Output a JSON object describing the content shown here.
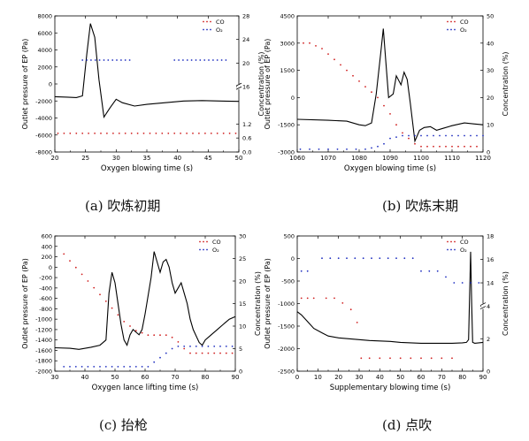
{
  "chart_data": [
    {
      "type": "line",
      "caption": "(a) 吹炼初期",
      "xlabel": "Oxygen blowing time (s)",
      "ylabel": "Outlet pressure of EP (Pa)",
      "y2label": "Concentration (%)",
      "xlim": [
        20,
        50
      ],
      "xticks": [
        "20",
        "25",
        "30",
        "35",
        "40",
        "45",
        "50"
      ],
      "ylim": [
        -8000,
        8000
      ],
      "yticks": [
        "-8000",
        "-6000",
        "-4000",
        "-2000",
        "0",
        "2000",
        "4000",
        "6000",
        "8000"
      ],
      "y2_lower": {
        "range": [
          0.0,
          2.8
        ],
        "ticks": [
          "0.0",
          "0.6",
          "1.2"
        ]
      },
      "y2_upper": {
        "range": [
          16,
          28
        ],
        "ticks": [
          "16",
          "20",
          "24",
          "28"
        ]
      },
      "legend": [
        {
          "name": "CO",
          "marker": "dot",
          "color": "#d02020"
        },
        {
          "name": "O₂",
          "marker": "dot",
          "color": "#2030c0"
        }
      ],
      "series": [
        {
          "name": "pressure",
          "axis": "left",
          "color": "#000000",
          "x": [
            20,
            22,
            23.5,
            24.5,
            25.2,
            25.8,
            26.5,
            27.2,
            28,
            29,
            30,
            31,
            33,
            35,
            38,
            41,
            44,
            47,
            50
          ],
          "y": [
            -1500,
            -1550,
            -1600,
            -1400,
            3500,
            7100,
            5500,
            500,
            -3900,
            -2800,
            -1800,
            -2200,
            -2600,
            -2400,
            -2200,
            -2000,
            -1950,
            -2000,
            -2050
          ]
        },
        {
          "name": "CO",
          "axis": "right-lower",
          "color": "#d02020",
          "x": [
            20.5,
            21.5,
            22.5,
            23.5,
            24.5,
            25.5,
            26.5,
            27.5,
            28.5,
            29.5,
            30.5,
            31.5,
            32.5,
            33.5,
            34.5,
            35.5,
            36.5,
            37.5,
            38.5,
            39.5,
            40.5,
            41.5,
            42.5,
            43.5,
            44.5,
            45.5,
            46.5,
            47.5,
            48.5,
            49.5
          ],
          "y": [
            0.8,
            0.8,
            0.8,
            0.8,
            0.8,
            0.8,
            0.8,
            0.8,
            0.8,
            0.8,
            0.8,
            0.8,
            0.8,
            0.8,
            0.8,
            0.8,
            0.8,
            0.8,
            0.8,
            0.8,
            0.8,
            0.8,
            0.8,
            0.8,
            0.8,
            0.8,
            0.8,
            0.8,
            0.8,
            0.8
          ]
        },
        {
          "name": "O₂",
          "axis": "right-upper",
          "color": "#2030c0",
          "x": [
            24.5,
            25.2,
            25.9,
            26.6,
            27.3,
            28.0,
            28.7,
            29.4,
            30.1,
            30.8,
            31.5,
            32.2,
            39.5,
            40.2,
            40.9,
            41.6,
            42.3,
            43.0,
            43.7,
            44.4,
            45.1,
            45.8,
            46.5,
            47.2,
            47.9
          ],
          "y": [
            20.5,
            20.5,
            20.5,
            20.5,
            20.5,
            20.5,
            20.5,
            20.5,
            20.5,
            20.5,
            20.5,
            20.5,
            20.5,
            20.5,
            20.5,
            20.5,
            20.5,
            20.5,
            20.5,
            20.5,
            20.5,
            20.5,
            20.5,
            20.5,
            20.5
          ]
        }
      ]
    },
    {
      "type": "line",
      "caption": "(b) 吹炼末期",
      "xlabel": "Oxygen blowing time (s)",
      "ylabel": "Outlet pressure of EP (Pa)",
      "y2label": "Concentration (%)",
      "xlim": [
        1060,
        1120
      ],
      "xticks": [
        "1060",
        "1070",
        "1080",
        "1090",
        "1100",
        "1110",
        "1120"
      ],
      "ylim": [
        -3000,
        4500
      ],
      "yticks": [
        "-3000",
        "-1500",
        "0",
        "1500",
        "3000",
        "4500"
      ],
      "y2": {
        "range": [
          0,
          50
        ],
        "ticks": [
          "0",
          "10",
          "20",
          "30",
          "40",
          "50"
        ]
      },
      "legend": [
        {
          "name": "CO",
          "marker": "dot",
          "color": "#d02020"
        },
        {
          "name": "O₂",
          "marker": "dot",
          "color": "#2030c0"
        }
      ],
      "series": [
        {
          "name": "pressure",
          "axis": "left",
          "color": "#000000",
          "x": [
            1060,
            1070,
            1076,
            1080,
            1082,
            1084,
            1085.5,
            1087,
            1087.8,
            1088.5,
            1089.5,
            1091,
            1092,
            1093.5,
            1094.5,
            1095.5,
            1096.5,
            1098,
            1099.5,
            1101,
            1103,
            1105,
            1107,
            1110,
            1114,
            1117,
            1120
          ],
          "y": [
            -1200,
            -1250,
            -1300,
            -1500,
            -1550,
            -1400,
            200,
            2500,
            3800,
            2200,
            0,
            200,
            1200,
            700,
            1400,
            1000,
            -300,
            -2400,
            -1800,
            -1650,
            -1600,
            -1800,
            -1700,
            -1550,
            -1400,
            -1450,
            -1500
          ]
        },
        {
          "name": "CO",
          "axis": "right",
          "color": "#d02020",
          "x": [
            1062,
            1064,
            1066,
            1068,
            1070,
            1072,
            1074,
            1076,
            1078,
            1080,
            1082,
            1084,
            1086,
            1088,
            1090,
            1092,
            1094,
            1096,
            1098,
            1100,
            1102,
            1104,
            1106,
            1108,
            1110,
            1112,
            1114,
            1116,
            1118
          ],
          "y": [
            40,
            40,
            39,
            38,
            36,
            34,
            32,
            30,
            28,
            26,
            24,
            22,
            20,
            17,
            14,
            10,
            7,
            5,
            3,
            2,
            2,
            2,
            2,
            2,
            2,
            2,
            2,
            2,
            2
          ]
        },
        {
          "name": "O₂",
          "axis": "right",
          "color": "#2030c0",
          "x": [
            1061,
            1064,
            1067,
            1070,
            1073,
            1076,
            1079,
            1082,
            1084,
            1086,
            1088,
            1090,
            1092,
            1094,
            1096,
            1098,
            1100,
            1102,
            1104,
            1106,
            1108,
            1110,
            1112,
            1114,
            1116,
            1118,
            1120
          ],
          "y": [
            1,
            1,
            1,
            1,
            1,
            1,
            1,
            1,
            1.5,
            2,
            3,
            5,
            5.5,
            6,
            6,
            6,
            6,
            6,
            6,
            6,
            6,
            6,
            6,
            6,
            6,
            6,
            6
          ]
        }
      ]
    },
    {
      "type": "line",
      "caption": "(c) 抬枪",
      "xlabel": "Oxygen lance lifting time (s)",
      "ylabel": "Outlet pressure of EP (Pa)",
      "y2label": "Concentration (%)",
      "xlim": [
        30,
        90
      ],
      "xticks": [
        "30",
        "40",
        "50",
        "60",
        "70",
        "80",
        "90"
      ],
      "ylim": [
        -2000,
        600
      ],
      "yticks": [
        "-2000",
        "-1800",
        "-1600",
        "-1400",
        "-1200",
        "-1000",
        "-800",
        "-600",
        "-400",
        "-200",
        "0",
        "200",
        "400",
        "600"
      ],
      "y2": {
        "range": [
          0,
          30
        ],
        "ticks": [
          "0",
          "5",
          "10",
          "15",
          "20",
          "25",
          "30"
        ]
      },
      "legend": [
        {
          "name": "CO",
          "marker": "dot",
          "color": "#d02020"
        },
        {
          "name": "O₂",
          "marker": "dot",
          "color": "#2030c0"
        }
      ],
      "series": [
        {
          "name": "pressure",
          "axis": "left",
          "color": "#000000",
          "x": [
            30,
            35,
            38,
            42,
            45,
            47,
            48,
            49,
            50,
            51,
            52,
            53,
            54,
            55,
            56,
            57,
            58,
            59,
            60,
            62,
            63,
            64,
            65,
            66,
            67,
            68,
            69,
            70,
            71,
            72,
            73,
            74,
            75,
            76,
            78,
            79,
            80,
            82,
            84,
            86,
            88,
            90
          ],
          "y": [
            -1550,
            -1560,
            -1580,
            -1540,
            -1500,
            -1400,
            -500,
            -100,
            -300,
            -700,
            -1100,
            -1400,
            -1500,
            -1300,
            -1200,
            -1250,
            -1300,
            -1200,
            -900,
            -200,
            300,
            100,
            -100,
            100,
            150,
            0,
            -300,
            -500,
            -400,
            -300,
            -500,
            -700,
            -1000,
            -1200,
            -1450,
            -1500,
            -1400,
            -1300,
            -1200,
            -1100,
            -1000,
            -950
          ]
        },
        {
          "name": "CO",
          "axis": "right",
          "color": "#d02020",
          "x": [
            33,
            35,
            37,
            39,
            41,
            43,
            45,
            47,
            49,
            51,
            53,
            55,
            57,
            59,
            61,
            63,
            65,
            67,
            69,
            71,
            73,
            75,
            77,
            79,
            81,
            83,
            85,
            87,
            89
          ],
          "y": [
            26,
            24.5,
            23,
            21.5,
            20,
            18.5,
            17,
            15.5,
            14,
            12.5,
            11,
            10,
            9,
            8.5,
            8,
            8,
            8,
            8,
            7.5,
            6.5,
            5,
            4,
            4,
            4,
            4,
            4,
            4,
            4,
            4
          ]
        },
        {
          "name": "O₂",
          "axis": "right",
          "color": "#2030c0",
          "x": [
            33,
            35,
            37,
            39,
            41,
            43,
            45,
            47,
            49,
            51,
            53,
            55,
            57,
            59,
            61,
            63,
            65,
            67,
            69,
            71,
            73,
            75,
            77,
            79,
            81,
            83,
            85,
            87,
            89
          ],
          "y": [
            1,
            1,
            1,
            1,
            1,
            1,
            1,
            1,
            1,
            1,
            1,
            1,
            1,
            1,
            1,
            2,
            3,
            4,
            5,
            5.5,
            5.5,
            5.5,
            5.5,
            5.5,
            5.5,
            5.5,
            5.5,
            5.5,
            5.5
          ]
        }
      ]
    },
    {
      "type": "line",
      "caption": "(d) 点吹",
      "xlabel": "Supplementary blowing time (s)",
      "ylabel": "Outlet pressure of EP (Pa)",
      "y2label": "Concentration (%)",
      "xlim": [
        0,
        90
      ],
      "xticks": [
        "0",
        "10",
        "20",
        "30",
        "40",
        "50",
        "60",
        "70",
        "80",
        "90"
      ],
      "ylim": [
        -2500,
        500
      ],
      "yticks": [
        "-2500",
        "-2000",
        "-1500",
        "-1000",
        "-500",
        "0",
        "500"
      ],
      "y2_lower": {
        "range": [
          0,
          4
        ],
        "ticks": [
          "0",
          "2",
          "4"
        ]
      },
      "y2_upper": {
        "range": [
          12,
          18
        ],
        "ticks": [
          "14",
          "16",
          "18"
        ]
      },
      "legend": [
        {
          "name": "CO",
          "marker": "dot",
          "color": "#d02020"
        },
        {
          "name": "O₂",
          "marker": "dot",
          "color": "#2030c0"
        }
      ],
      "series": [
        {
          "name": "pressure",
          "axis": "left",
          "color": "#000000",
          "x": [
            0,
            2,
            5,
            8,
            12,
            15,
            20,
            25,
            30,
            35,
            40,
            45,
            50,
            55,
            60,
            65,
            70,
            75,
            80,
            82,
            83,
            84,
            84.5,
            85,
            86,
            88,
            90
          ],
          "y": [
            -1180,
            -1250,
            -1400,
            -1550,
            -1650,
            -1720,
            -1760,
            -1780,
            -1800,
            -1820,
            -1830,
            -1840,
            -1860,
            -1870,
            -1880,
            -1880,
            -1880,
            -1880,
            -1870,
            -1860,
            -1800,
            150,
            -1000,
            -1860,
            -1880,
            -1870,
            -1860
          ]
        },
        {
          "name": "CO",
          "axis": "right-lower",
          "color": "#d02020",
          "x": [
            2,
            5,
            8,
            14,
            18,
            22,
            26,
            29,
            31,
            35,
            40,
            45,
            50,
            55,
            60,
            65,
            70,
            75
          ],
          "y": [
            4.5,
            4.5,
            4.5,
            4.5,
            4.5,
            4.2,
            3.8,
            3.0,
            0.8,
            0.8,
            0.8,
            0.8,
            0.8,
            0.8,
            0.8,
            0.8,
            0.8,
            0.8
          ]
        },
        {
          "name": "O₂",
          "axis": "right-upper",
          "color": "#2030c0",
          "x": [
            2,
            5,
            12,
            16,
            20,
            24,
            28,
            32,
            36,
            40,
            44,
            48,
            52,
            56,
            60,
            64,
            68,
            72,
            76,
            80,
            84,
            88
          ],
          "y": [
            15,
            15,
            16.1,
            16.1,
            16.1,
            16.1,
            16.1,
            16.1,
            16.1,
            16.1,
            16.1,
            16.1,
            16.1,
            16.1,
            15,
            15,
            15,
            14.5,
            14,
            14,
            14,
            14
          ]
        }
      ]
    }
  ]
}
